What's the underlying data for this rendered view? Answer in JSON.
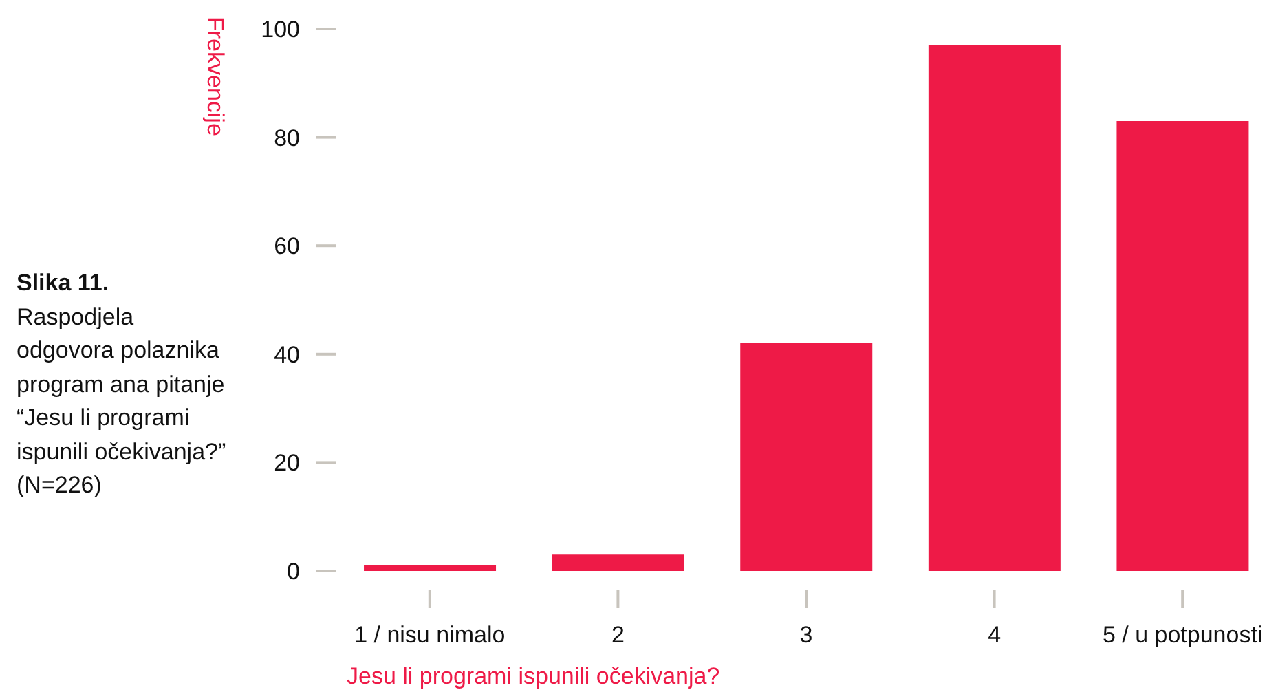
{
  "chart_data": {
    "type": "bar",
    "title": "Slika 11.",
    "subtitle": "Raspodjela odgovora polaznika program ana pitanje “Jesu li programi ispunili očekivanja?” (N=226)",
    "xlabel": "Jesu li programi ispunili očekivanja?",
    "ylabel": "Frekvencije",
    "categories": [
      "1 / nisu nimalo",
      "2",
      "3",
      "4",
      "5 / u potpunosti"
    ],
    "values": [
      1,
      3,
      42,
      97,
      83
    ],
    "color": "#ee1a47",
    "ylim": [
      0,
      100
    ],
    "yticks": [
      0,
      20,
      40,
      60,
      80,
      100
    ],
    "grid": false,
    "legend": false
  }
}
